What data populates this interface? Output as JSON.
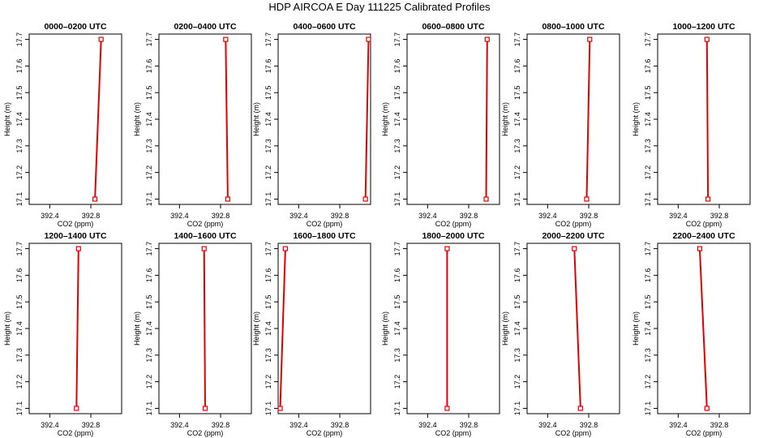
{
  "figure": {
    "title": "HDP AIRCOA E  Day 111225  Calibrated Profiles"
  },
  "chart_data": [
    {
      "type": "line",
      "title": "0000–0200 UTC",
      "xlabel": "CO2 (ppm)",
      "ylabel": "Height (m)",
      "xlim": [
        392.2,
        393.1
      ],
      "ylim": [
        17.08,
        17.72
      ],
      "x_ticks": [
        "392.4",
        "392.8"
      ],
      "y_ticks": [
        "17.1",
        "17.2",
        "17.3",
        "17.4",
        "17.5",
        "17.6",
        "17.7"
      ],
      "series": [
        {
          "x": [
            392.84,
            392.9
          ],
          "y": [
            17.1,
            17.7
          ]
        }
      ],
      "color": "#e00000"
    },
    {
      "type": "line",
      "title": "0200–0400 UTC",
      "xlabel": "CO2 (ppm)",
      "ylabel": "Height (m)",
      "xlim": [
        392.2,
        393.1
      ],
      "ylim": [
        17.08,
        17.72
      ],
      "x_ticks": [
        "392.4",
        "392.8"
      ],
      "y_ticks": [
        "17.1",
        "17.2",
        "17.3",
        "17.4",
        "17.5",
        "17.6",
        "17.7"
      ],
      "series": [
        {
          "x": [
            392.87,
            392.85
          ],
          "y": [
            17.1,
            17.7
          ]
        }
      ],
      "color": "#e00000"
    },
    {
      "type": "line",
      "title": "0400–0600 UTC",
      "xlabel": "CO2 (ppm)",
      "ylabel": "Height (m)",
      "xlim": [
        392.2,
        393.1
      ],
      "ylim": [
        17.08,
        17.72
      ],
      "x_ticks": [
        "392.4",
        "392.8"
      ],
      "y_ticks": [
        "17.1",
        "17.2",
        "17.3",
        "17.4",
        "17.5",
        "17.6",
        "17.7"
      ],
      "series": [
        {
          "x": [
            393.05,
            393.08
          ],
          "y": [
            17.1,
            17.7
          ]
        }
      ],
      "color": "#e00000"
    },
    {
      "type": "line",
      "title": "0600–0800 UTC",
      "xlabel": "CO2 (ppm)",
      "ylabel": "Height (m)",
      "xlim": [
        392.2,
        393.1
      ],
      "ylim": [
        17.08,
        17.72
      ],
      "x_ticks": [
        "392.4",
        "392.8"
      ],
      "y_ticks": [
        "17.1",
        "17.2",
        "17.3",
        "17.4",
        "17.5",
        "17.6",
        "17.7"
      ],
      "series": [
        {
          "x": [
            392.97,
            392.98
          ],
          "y": [
            17.1,
            17.7
          ]
        }
      ],
      "color": "#e00000"
    },
    {
      "type": "line",
      "title": "0800–1000 UTC",
      "xlabel": "CO2 (ppm)",
      "ylabel": "Height (m)",
      "xlim": [
        392.2,
        393.1
      ],
      "ylim": [
        17.08,
        17.72
      ],
      "x_ticks": [
        "392.4",
        "392.8"
      ],
      "y_ticks": [
        "17.1",
        "17.2",
        "17.3",
        "17.4",
        "17.5",
        "17.6",
        "17.7"
      ],
      "series": [
        {
          "x": [
            392.78,
            392.81
          ],
          "y": [
            17.1,
            17.7
          ]
        }
      ],
      "color": "#e00000"
    },
    {
      "type": "line",
      "title": "1000–1200 UTC",
      "xlabel": "CO2 (ppm)",
      "ylabel": "Height (m)",
      "xlim": [
        392.2,
        393.1
      ],
      "ylim": [
        17.08,
        17.72
      ],
      "x_ticks": [
        "392.4",
        "392.8"
      ],
      "y_ticks": [
        "17.1",
        "17.2",
        "17.3",
        "17.4",
        "17.5",
        "17.6",
        "17.7"
      ],
      "series": [
        {
          "x": [
            392.69,
            392.68
          ],
          "y": [
            17.1,
            17.7
          ]
        }
      ],
      "color": "#e00000"
    },
    {
      "type": "line",
      "title": "1200–1400 UTC",
      "xlabel": "CO2 (ppm)",
      "ylabel": "Height (m)",
      "xlim": [
        392.2,
        393.1
      ],
      "ylim": [
        17.08,
        17.72
      ],
      "x_ticks": [
        "392.4",
        "392.8"
      ],
      "y_ticks": [
        "17.1",
        "17.2",
        "17.3",
        "17.4",
        "17.5",
        "17.6",
        "17.7"
      ],
      "series": [
        {
          "x": [
            392.66,
            392.68
          ],
          "y": [
            17.1,
            17.7
          ]
        }
      ],
      "color": "#e00000"
    },
    {
      "type": "line",
      "title": "1400–1600 UTC",
      "xlabel": "CO2 (ppm)",
      "ylabel": "Height (m)",
      "xlim": [
        392.2,
        393.1
      ],
      "ylim": [
        17.08,
        17.72
      ],
      "x_ticks": [
        "392.4",
        "392.8"
      ],
      "y_ticks": [
        "17.1",
        "17.2",
        "17.3",
        "17.4",
        "17.5",
        "17.6",
        "17.7"
      ],
      "series": [
        {
          "x": [
            392.65,
            392.64
          ],
          "y": [
            17.1,
            17.7
          ]
        }
      ],
      "color": "#e00000"
    },
    {
      "type": "line",
      "title": "1600–1800 UTC",
      "xlabel": "CO2 (ppm)",
      "ylabel": "Height (m)",
      "xlim": [
        392.2,
        393.1
      ],
      "ylim": [
        17.08,
        17.72
      ],
      "x_ticks": [
        "392.4",
        "392.8"
      ],
      "y_ticks": [
        "17.1",
        "17.2",
        "17.3",
        "17.4",
        "17.5",
        "17.6",
        "17.7"
      ],
      "series": [
        {
          "x": [
            392.22,
            392.27
          ],
          "y": [
            17.1,
            17.7
          ]
        }
      ],
      "color": "#e00000"
    },
    {
      "type": "line",
      "title": "1800–2000 UTC",
      "xlabel": "CO2 (ppm)",
      "ylabel": "Height (m)",
      "xlim": [
        392.2,
        393.1
      ],
      "ylim": [
        17.08,
        17.72
      ],
      "x_ticks": [
        "392.4",
        "392.8"
      ],
      "y_ticks": [
        "17.1",
        "17.2",
        "17.3",
        "17.4",
        "17.5",
        "17.6",
        "17.7"
      ],
      "series": [
        {
          "x": [
            392.59,
            392.59
          ],
          "y": [
            17.1,
            17.7
          ]
        }
      ],
      "color": "#e00000"
    },
    {
      "type": "line",
      "title": "2000–2200 UTC",
      "xlabel": "CO2 (ppm)",
      "ylabel": "Height (m)",
      "xlim": [
        392.2,
        393.1
      ],
      "ylim": [
        17.08,
        17.72
      ],
      "x_ticks": [
        "392.4",
        "392.8"
      ],
      "y_ticks": [
        "17.1",
        "17.2",
        "17.3",
        "17.4",
        "17.5",
        "17.6",
        "17.7"
      ],
      "series": [
        {
          "x": [
            392.72,
            392.66
          ],
          "y": [
            17.1,
            17.7
          ]
        }
      ],
      "color": "#e00000"
    },
    {
      "type": "line",
      "title": "2200–2400 UTC",
      "xlabel": "CO2 (ppm)",
      "ylabel": "Height (m)",
      "xlim": [
        392.2,
        393.1
      ],
      "ylim": [
        17.08,
        17.72
      ],
      "x_ticks": [
        "392.4",
        "392.8"
      ],
      "y_ticks": [
        "17.1",
        "17.2",
        "17.3",
        "17.4",
        "17.5",
        "17.6",
        "17.7"
      ],
      "series": [
        {
          "x": [
            392.68,
            392.61
          ],
          "y": [
            17.1,
            17.7
          ]
        }
      ],
      "color": "#e00000"
    }
  ]
}
